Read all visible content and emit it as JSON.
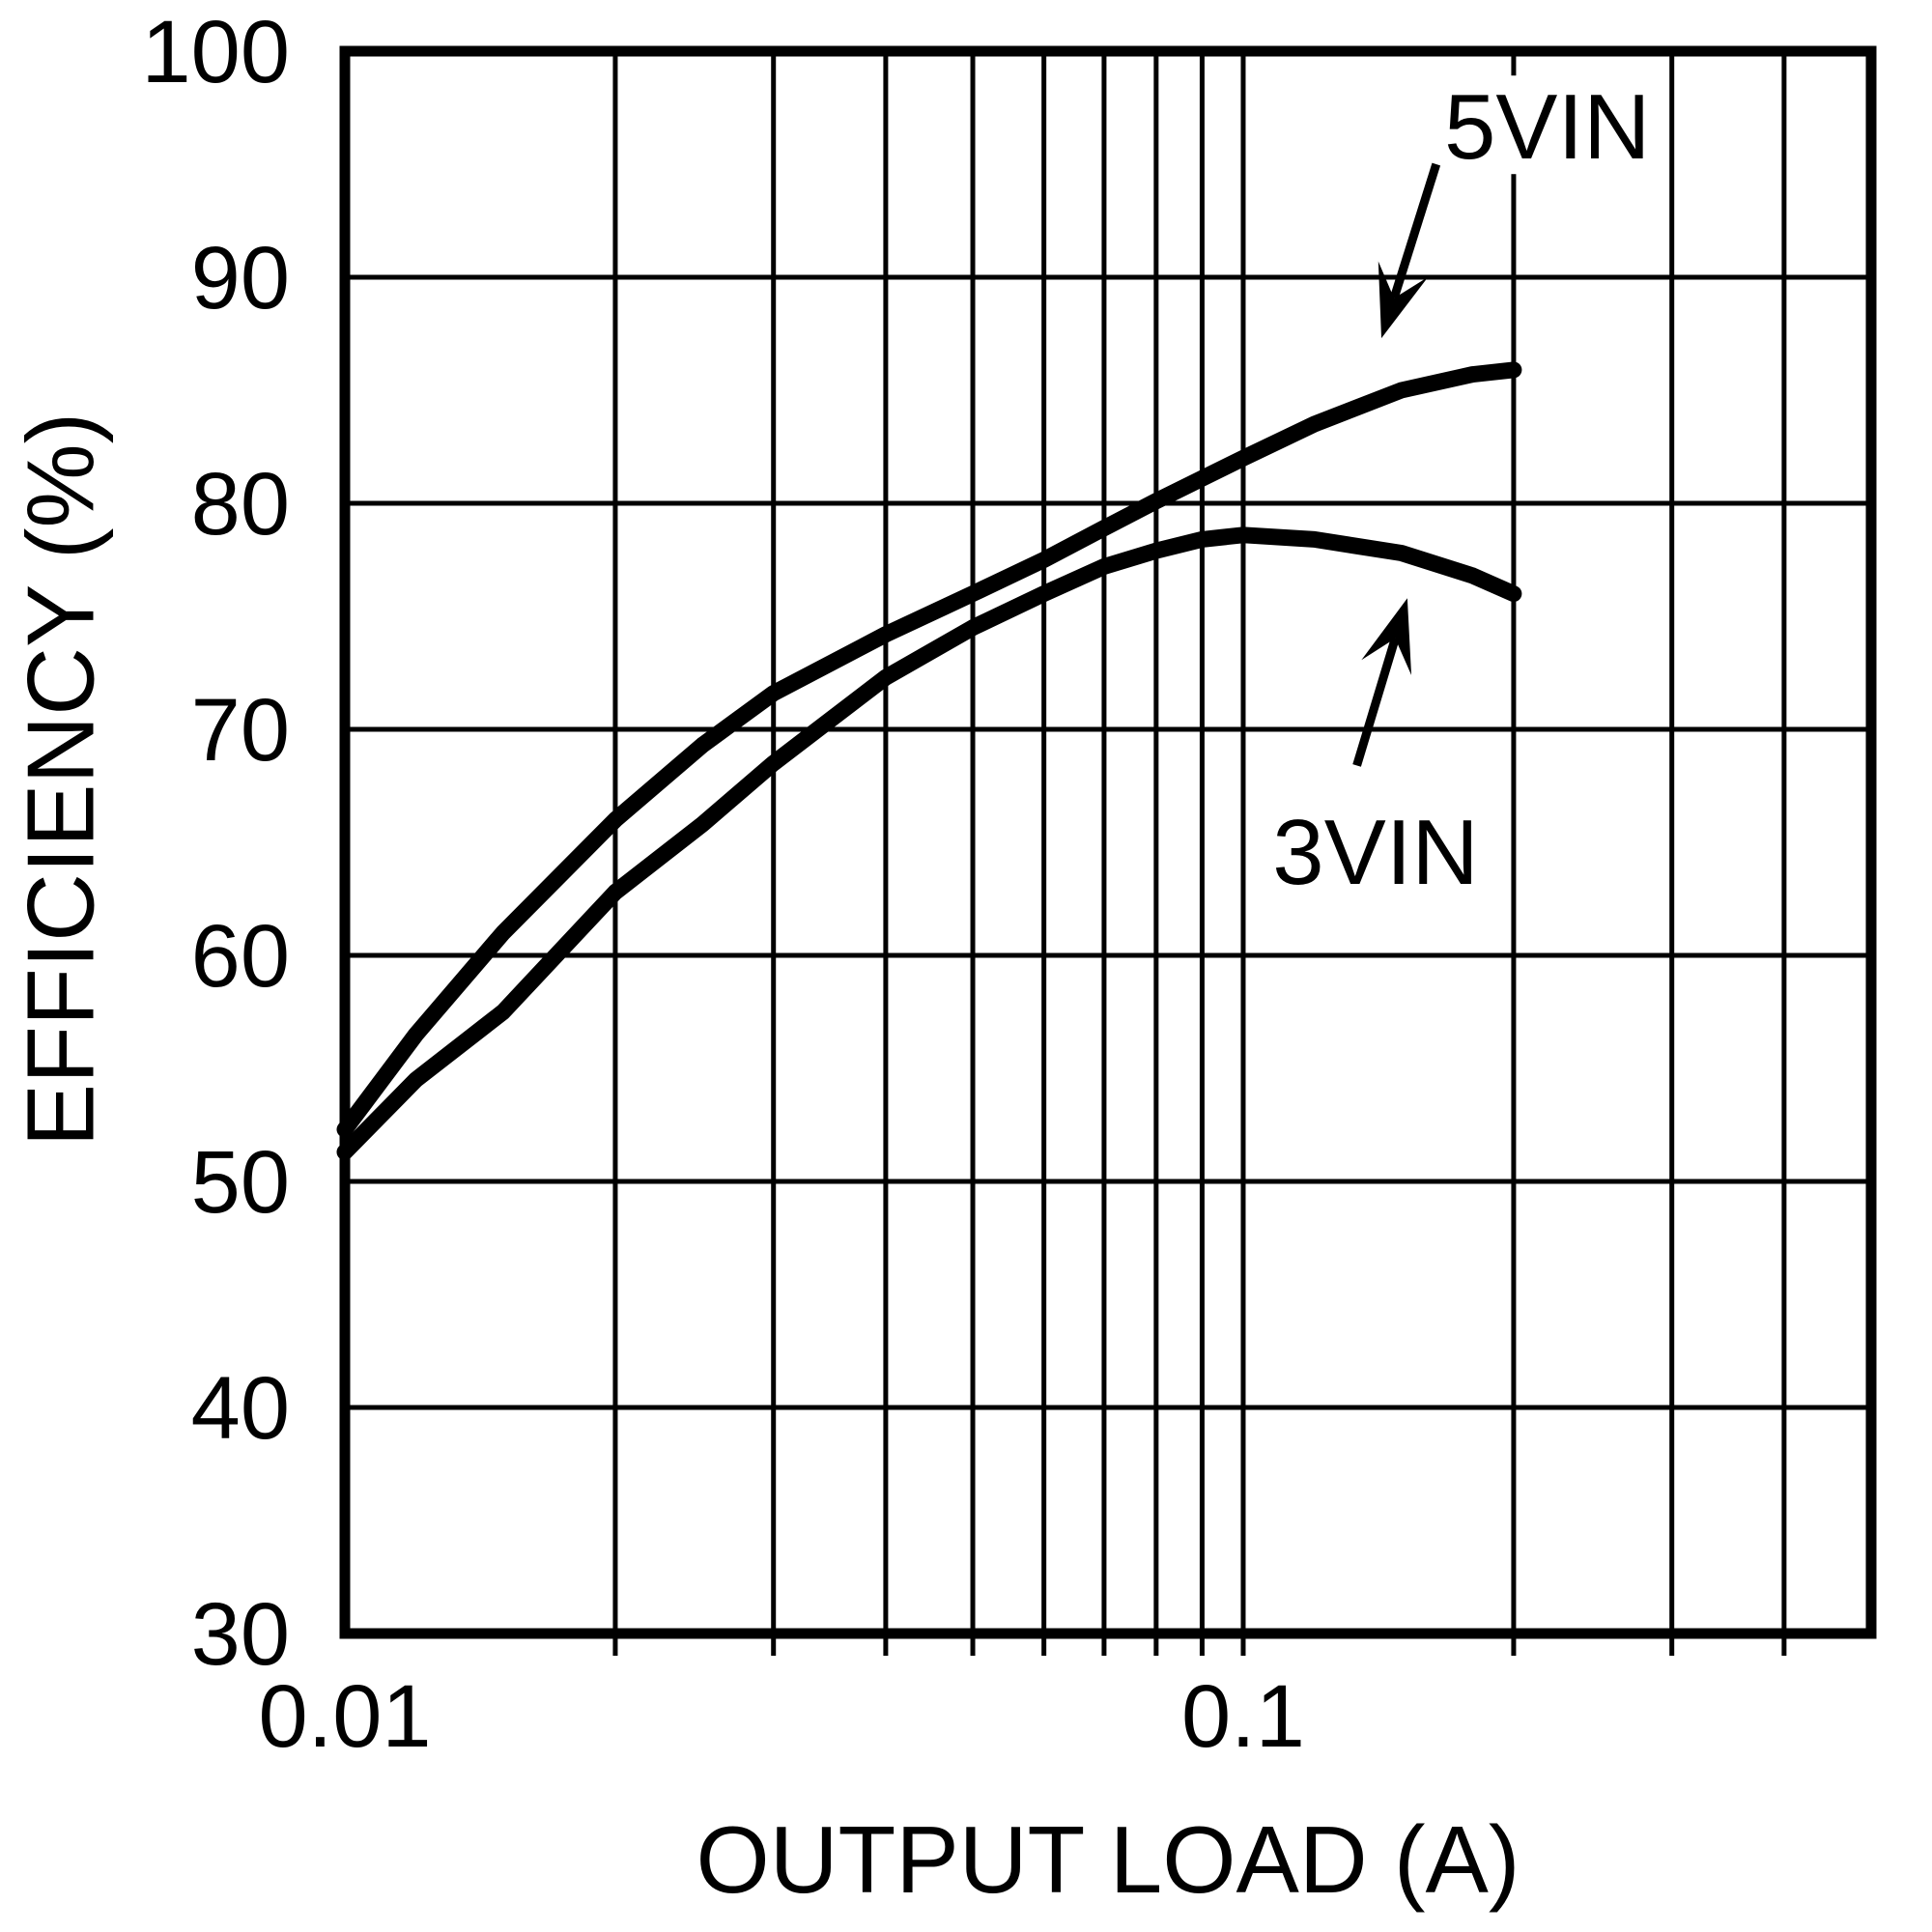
{
  "figure": {
    "background_color": "#ffffff",
    "foreground_color": "#000000"
  },
  "chart_data": {
    "type": "line",
    "title": "",
    "xlabel": "OUTPUT LOAD (A)",
    "ylabel": "EFFICIENCY (%)",
    "x_scale": "log",
    "xlim": [
      0.01,
      0.5
    ],
    "ylim": [
      30,
      100
    ],
    "grid": true,
    "legend_position": "none",
    "x_ticks": [
      {
        "value": 0.01,
        "label": "0.01"
      },
      {
        "value": 0.1,
        "label": "0.1"
      }
    ],
    "y_ticks": [
      {
        "value": 100,
        "label": "100"
      },
      {
        "value": 90,
        "label": "90"
      },
      {
        "value": 80,
        "label": "80"
      },
      {
        "value": 70,
        "label": "70"
      },
      {
        "value": 60,
        "label": "60"
      },
      {
        "value": 50,
        "label": "50"
      },
      {
        "value": 40,
        "label": "40"
      },
      {
        "value": 30,
        "label": "30"
      }
    ],
    "x_gridlines": [
      0.02,
      0.03,
      0.04,
      0.05,
      0.06,
      0.07,
      0.08,
      0.09,
      0.1,
      0.2,
      0.3,
      0.4
    ],
    "y_gridlines": [
      40,
      50,
      60,
      70,
      80,
      90
    ],
    "series": [
      {
        "name": "5VIN",
        "points": [
          [
            0.01,
            52.3
          ],
          [
            0.012,
            56.5
          ],
          [
            0.015,
            61.0
          ],
          [
            0.02,
            66.0
          ],
          [
            0.025,
            69.3
          ],
          [
            0.03,
            71.6
          ],
          [
            0.04,
            74.2
          ],
          [
            0.05,
            76.0
          ],
          [
            0.06,
            77.5
          ],
          [
            0.07,
            78.9
          ],
          [
            0.08,
            80.1
          ],
          [
            0.09,
            81.1
          ],
          [
            0.1,
            82.0
          ],
          [
            0.12,
            83.5
          ],
          [
            0.15,
            85.0
          ],
          [
            0.18,
            85.7
          ],
          [
            0.2,
            85.9
          ]
        ]
      },
      {
        "name": "3VIN",
        "points": [
          [
            0.01,
            51.3
          ],
          [
            0.012,
            54.5
          ],
          [
            0.015,
            57.5
          ],
          [
            0.02,
            62.8
          ],
          [
            0.025,
            65.8
          ],
          [
            0.03,
            68.5
          ],
          [
            0.04,
            72.3
          ],
          [
            0.05,
            74.5
          ],
          [
            0.06,
            76.0
          ],
          [
            0.07,
            77.2
          ],
          [
            0.08,
            77.9
          ],
          [
            0.09,
            78.4
          ],
          [
            0.1,
            78.6
          ],
          [
            0.12,
            78.4
          ],
          [
            0.15,
            77.8
          ],
          [
            0.18,
            76.8
          ],
          [
            0.2,
            76.0
          ]
        ]
      }
    ],
    "annotations": [
      {
        "text": "5VIN",
        "label_at": {
          "load": 0.218,
          "eff": 96.7
        },
        "arrow_from": {
          "load": 0.164,
          "eff": 95.0
        },
        "arrow_to": {
          "load": 0.1425,
          "eff": 87.3
        }
      },
      {
        "text": "3VIN",
        "label_at": {
          "load": 0.1404,
          "eff": 64.6
        },
        "arrow_from": {
          "load": 0.1338,
          "eff": 68.4
        },
        "arrow_to": {
          "load": 0.1523,
          "eff": 75.8
        }
      }
    ]
  }
}
